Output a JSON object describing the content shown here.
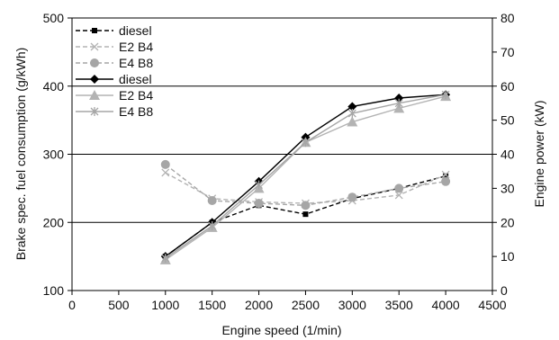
{
  "chart_data": {
    "type": "line",
    "xlabel": "Engine speed (1/min)",
    "ylabel_left": "Brake spec. fuel consumption (g/kWh)",
    "ylabel_right": "Engine power (kW)",
    "xlim": [
      0,
      4500
    ],
    "ylim_left": [
      100,
      500
    ],
    "ylim_right": [
      0,
      80
    ],
    "x_ticks": [
      "0",
      "500",
      "1000",
      "1500",
      "2000",
      "2500",
      "3000",
      "3500",
      "4000",
      "4500"
    ],
    "y_left_ticks": [
      "100",
      "200",
      "300",
      "400",
      "500"
    ],
    "y_right_ticks": [
      "0",
      "10",
      "20",
      "30",
      "40",
      "50",
      "60",
      "70",
      "80"
    ],
    "grid": "horizontal at 200, 300, 400",
    "legend_position": "top-left",
    "x": [
      1000,
      1500,
      2000,
      2500,
      3000,
      3500,
      4000
    ],
    "series": [
      {
        "name": "diesel",
        "axis": "left",
        "quantity": "bsfc",
        "color": "#000000",
        "dash": "dashed",
        "marker": "square",
        "values": [
          150,
          200,
          225,
          212,
          235,
          250,
          268
        ]
      },
      {
        "name": "E2 B4",
        "axis": "left",
        "quantity": "bsfc",
        "color": "#b3b3b3",
        "dash": "dashed",
        "marker": "x",
        "values": [
          273,
          235,
          230,
          228,
          232,
          240,
          270
        ]
      },
      {
        "name": "E4 B8",
        "axis": "left",
        "quantity": "bsfc",
        "color": "#a6a6a6",
        "dash": "dashed",
        "marker": "circle",
        "values": [
          285,
          232,
          228,
          225,
          237,
          250,
          260
        ]
      },
      {
        "name": "diesel",
        "axis": "right",
        "quantity": "power",
        "color": "#000000",
        "dash": "solid",
        "marker": "diamond",
        "values": [
          10,
          20,
          32,
          45,
          54,
          56.5,
          57.5
        ]
      },
      {
        "name": "E2 B4",
        "axis": "right",
        "quantity": "power",
        "color": "#b3b3b3",
        "dash": "solid",
        "marker": "triangle",
        "values": [
          9,
          18.5,
          30,
          43.5,
          49.5,
          53.5,
          57
        ]
      },
      {
        "name": "E4 B8",
        "axis": "right",
        "quantity": "power",
        "color": "#a6a6a6",
        "dash": "solid",
        "marker": "asterisk",
        "values": [
          9.5,
          19,
          31,
          43.5,
          52,
          55,
          57.5
        ]
      }
    ]
  }
}
